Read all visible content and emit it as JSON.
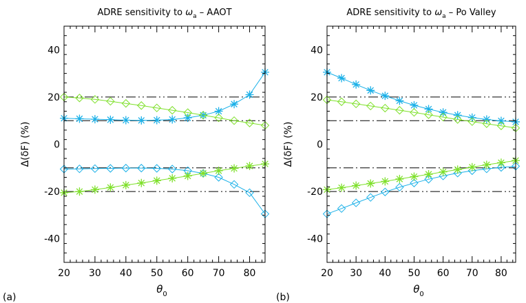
{
  "chart_data": [
    {
      "type": "line",
      "panel_label": "(a)",
      "title_prefix": "ADRE sensitivity to ",
      "title_symbol": "ω",
      "title_subscript": "a",
      "title_suffix": " – AAOT",
      "xlabel_symbol": "θ",
      "xlabel_subscript": "0",
      "ylabel": "Δ(δF) (%)",
      "xlim": [
        20,
        85
      ],
      "ylim": [
        -50,
        50
      ],
      "xticks": [
        20,
        30,
        40,
        50,
        60,
        70,
        80
      ],
      "yticks": [
        -40,
        -20,
        0,
        20,
        40
      ],
      "x": [
        20,
        25,
        30,
        35,
        40,
        45,
        50,
        55,
        60,
        65,
        70,
        75,
        80,
        85
      ],
      "reference_lines": [
        {
          "y": 20,
          "style": "dash-dot-dot"
        },
        {
          "y": 10,
          "style": "dash-dot"
        },
        {
          "y": -10,
          "style": "dash-dot"
        },
        {
          "y": -20,
          "style": "dash-dot-dot"
        }
      ],
      "series": [
        {
          "marker": "asterisk",
          "color": "#1ab0e8",
          "values": [
            11,
            10.8,
            10.6,
            10.4,
            10.2,
            10.1,
            10.2,
            10.5,
            11.2,
            12.3,
            14,
            17,
            21,
            30.5
          ]
        },
        {
          "marker": "diamond",
          "color": "#7ee02a",
          "values": [
            20,
            19.6,
            19,
            18.2,
            17.3,
            16.4,
            15.4,
            14.4,
            13.4,
            12.3,
            11.2,
            10,
            9,
            8
          ]
        },
        {
          "marker": "diamond",
          "color": "#1ab0e8",
          "values": [
            -10.5,
            -10.4,
            -10.3,
            -10.2,
            -10.1,
            -10.1,
            -10.2,
            -10.5,
            -11.2,
            -12.3,
            -14,
            -17,
            -20.5,
            -29.5
          ]
        },
        {
          "marker": "asterisk",
          "color": "#7ee02a",
          "values": [
            -20.5,
            -20,
            -19.2,
            -18.3,
            -17.3,
            -16.4,
            -15.4,
            -14.4,
            -13.4,
            -12.3,
            -11.2,
            -10.2,
            -9.2,
            -8.3
          ]
        }
      ]
    },
    {
      "type": "line",
      "panel_label": "(b)",
      "title_prefix": "ADRE sensitivity to ",
      "title_symbol": "ω",
      "title_subscript": "a",
      "title_suffix": " – Po Valley",
      "xlabel_symbol": "θ",
      "xlabel_subscript": "0",
      "ylabel": "Δ(δF) (%)",
      "xlim": [
        20,
        85
      ],
      "ylim": [
        -50,
        50
      ],
      "xticks": [
        20,
        30,
        40,
        50,
        60,
        70,
        80
      ],
      "yticks": [
        -40,
        -20,
        0,
        20,
        40
      ],
      "x": [
        20,
        25,
        30,
        35,
        40,
        45,
        50,
        55,
        60,
        65,
        70,
        75,
        80,
        85
      ],
      "reference_lines": [
        {
          "y": 20,
          "style": "dash-dot-dot"
        },
        {
          "y": 10,
          "style": "dash-dot"
        },
        {
          "y": -10,
          "style": "dash-dot"
        },
        {
          "y": -20,
          "style": "dash-dot-dot"
        }
      ],
      "series": [
        {
          "marker": "asterisk",
          "color": "#1ab0e8",
          "values": [
            30.5,
            28,
            25.3,
            22.8,
            20.5,
            18.4,
            16.5,
            14.9,
            13.5,
            12.3,
            11.3,
            10.5,
            9.9,
            9.5
          ]
        },
        {
          "marker": "diamond",
          "color": "#7ee02a",
          "values": [
            18.8,
            18,
            17.1,
            16.2,
            15.3,
            14.4,
            13.5,
            12.5,
            11.5,
            10.5,
            9.6,
            8.7,
            7.8,
            6.9
          ]
        },
        {
          "marker": "diamond",
          "color": "#1ab0e8",
          "values": [
            -29.5,
            -27.2,
            -24.8,
            -22.5,
            -20.2,
            -18.2,
            -16.4,
            -14.8,
            -13.4,
            -12.2,
            -11.2,
            -10.4,
            -9.8,
            -9.3
          ]
        },
        {
          "marker": "asterisk",
          "color": "#7ee02a",
          "values": [
            -19.2,
            -18.4,
            -17.5,
            -16.6,
            -15.7,
            -14.7,
            -13.7,
            -12.7,
            -11.7,
            -10.7,
            -9.7,
            -8.7,
            -7.8,
            -6.9
          ]
        }
      ]
    }
  ]
}
